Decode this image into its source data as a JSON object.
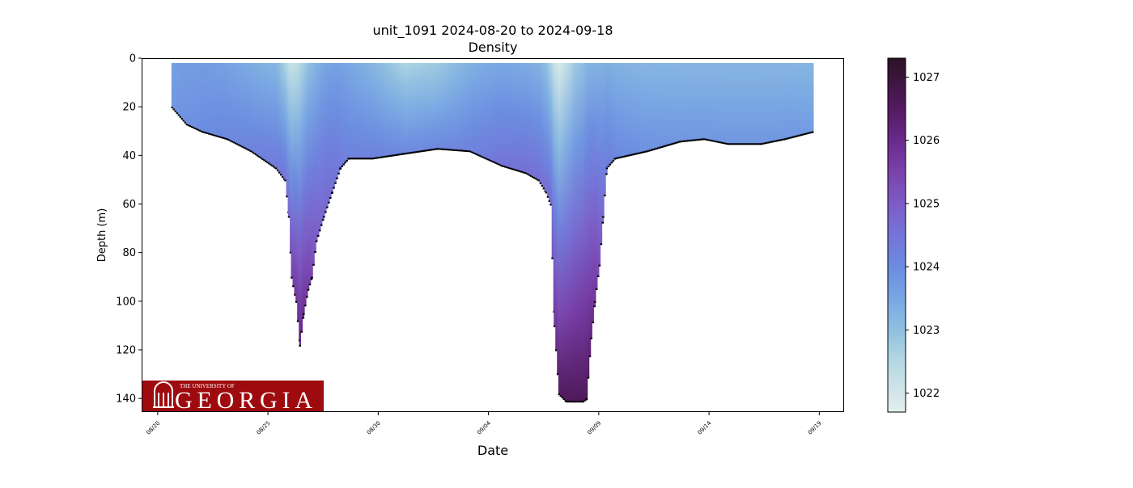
{
  "chart_data": {
    "type": "heatmap",
    "title": "unit_1091 2024-08-20 to 2024-09-18",
    "subtitle": "Density",
    "xlabel": "Date",
    "ylabel": "Depth (m)",
    "x_ticks": [
      "08/20",
      "08/25",
      "08/30",
      "09/04",
      "09/09",
      "09/14",
      "09/19"
    ],
    "x_tick_dates": [
      "2024-08-20",
      "2024-08-25",
      "2024-08-30",
      "2024-09-04",
      "2024-09-09",
      "2024-09-14",
      "2024-09-19"
    ],
    "xlim": [
      "2024-08-19T06:30",
      "2024-09-20T03:00"
    ],
    "y_ticks": [
      0,
      20,
      40,
      60,
      80,
      100,
      120,
      140
    ],
    "ylim": [
      145.6,
      0
    ],
    "y_inverted": true,
    "colorbar": {
      "ticks": [
        1022,
        1023,
        1024,
        1025,
        1026,
        1027
      ],
      "range": [
        1021.7,
        1027.3
      ],
      "colormap": [
        [
          1021.7,
          "#e4eeee"
        ],
        [
          1022.5,
          "#b5d8e2"
        ],
        [
          1023.0,
          "#8fbfe0"
        ],
        [
          1023.5,
          "#79a7e3"
        ],
        [
          1024.0,
          "#6b8ce0"
        ],
        [
          1024.5,
          "#7474d8"
        ],
        [
          1025.0,
          "#7d5cc6"
        ],
        [
          1025.5,
          "#7a42aa"
        ],
        [
          1026.0,
          "#6a2a8c"
        ],
        [
          1026.5,
          "#541a60"
        ],
        [
          1027.3,
          "#2c1226"
        ]
      ]
    },
    "profile_columns": [
      "time",
      "max_depth_m",
      "surface_density",
      "bottom_density"
    ],
    "profiles": [
      [
        "2024-08-20T15:00",
        20,
        1023.6,
        1023.8
      ],
      [
        "2024-08-21T07:00",
        27,
        1023.7,
        1023.9
      ],
      [
        "2024-08-22T00:00",
        30,
        1023.7,
        1024.0
      ],
      [
        "2024-08-23T03:00",
        33,
        1023.6,
        1024.1
      ],
      [
        "2024-08-24T05:00",
        38,
        1023.4,
        1024.2
      ],
      [
        "2024-08-25T08:00",
        45,
        1023.2,
        1024.4
      ],
      [
        "2024-08-25T18:00",
        50,
        1022.6,
        1024.5
      ],
      [
        "2024-08-25T22:00",
        65,
        1022.3,
        1024.8
      ],
      [
        "2024-08-26T01:00",
        90,
        1022.2,
        1025.5
      ],
      [
        "2024-08-26T06:00",
        100,
        1022.3,
        1025.8
      ],
      [
        "2024-08-26T10:00",
        118,
        1022.5,
        1026.1
      ],
      [
        "2024-08-26T14:00",
        105,
        1022.7,
        1025.9
      ],
      [
        "2024-08-26T19:00",
        95,
        1023.0,
        1025.6
      ],
      [
        "2024-08-26T23:00",
        90,
        1023.1,
        1025.4
      ],
      [
        "2024-08-27T04:00",
        75,
        1023.3,
        1025.0
      ],
      [
        "2024-08-27T12:00",
        65,
        1023.5,
        1024.8
      ],
      [
        "2024-08-27T21:00",
        55,
        1023.6,
        1024.6
      ],
      [
        "2024-08-28T06:00",
        45,
        1023.6,
        1024.4
      ],
      [
        "2024-08-28T15:00",
        41,
        1023.5,
        1024.2
      ],
      [
        "2024-08-29T17:00",
        41,
        1023.2,
        1024.2
      ],
      [
        "2024-08-31T04:00",
        39,
        1022.6,
        1024.1
      ],
      [
        "2024-09-01T16:00",
        37,
        1022.8,
        1024.1
      ],
      [
        "2024-09-03T03:00",
        38,
        1023.3,
        1024.2
      ],
      [
        "2024-09-04T14:00",
        44,
        1023.5,
        1024.5
      ],
      [
        "2024-09-05T16:00",
        47,
        1023.4,
        1024.6
      ],
      [
        "2024-09-06T06:00",
        50,
        1023.3,
        1024.6
      ],
      [
        "2024-09-06T14:00",
        55,
        1023.0,
        1024.6
      ],
      [
        "2024-09-06T19:00",
        60,
        1022.6,
        1024.7
      ],
      [
        "2024-09-06T23:00",
        110,
        1022.2,
        1025.8
      ],
      [
        "2024-09-07T04:00",
        138,
        1021.9,
        1026.5
      ],
      [
        "2024-09-07T12:00",
        141,
        1022.3,
        1026.6
      ],
      [
        "2024-09-07T21:00",
        141,
        1022.8,
        1026.6
      ],
      [
        "2024-09-08T06:00",
        141,
        1023.0,
        1026.6
      ],
      [
        "2024-09-08T10:00",
        140,
        1023.2,
        1026.6
      ],
      [
        "2024-09-08T15:00",
        115,
        1023.3,
        1026.1
      ],
      [
        "2024-09-08T19:00",
        100,
        1023.3,
        1025.8
      ],
      [
        "2024-09-09T00:00",
        85,
        1023.3,
        1025.2
      ],
      [
        "2024-09-09T04:00",
        65,
        1023.3,
        1024.7
      ],
      [
        "2024-09-09T08:00",
        45,
        1023.4,
        1024.3
      ],
      [
        "2024-09-09T17:00",
        41,
        1023.3,
        1024.1
      ],
      [
        "2024-09-11T04:00",
        38,
        1023.2,
        1023.9
      ],
      [
        "2024-09-12T16:00",
        34,
        1023.2,
        1023.8
      ],
      [
        "2024-09-13T18:00",
        33,
        1023.2,
        1023.8
      ],
      [
        "2024-09-14T20:00",
        35,
        1023.2,
        1023.8
      ],
      [
        "2024-09-16T08:00",
        35,
        1023.2,
        1023.8
      ],
      [
        "2024-09-17T10:00",
        33,
        1023.2,
        1023.8
      ],
      [
        "2024-09-18T17:00",
        30,
        1023.2,
        1023.7
      ]
    ],
    "grid": false
  },
  "logo": {
    "line1": "THE UNIVERSITY OF",
    "line2": "GEORGIA",
    "color": "#9e0b0f"
  }
}
